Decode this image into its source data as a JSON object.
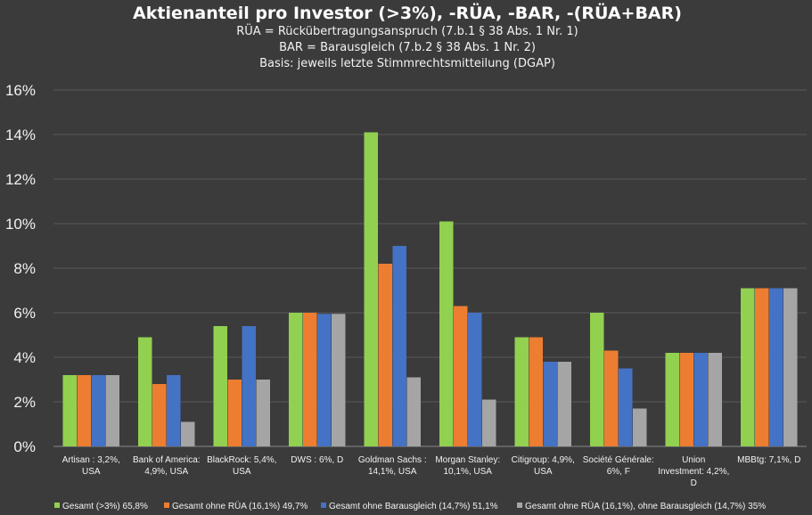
{
  "chart_data": {
    "type": "bar",
    "title": "Aktienanteil pro Investor (>3%), -RÜA, -BAR, -(RÜA+BAR)",
    "subtitle_lines": [
      "RÜA = Rückübertragungsanspruch (7.b.1 § 38 Abs. 1 Nr. 1)",
      "BAR = Barausgleich (7.b.2 § 38 Abs. 1 Nr. 2)",
      "Basis: jeweils letzte Stimmrechtsmitteilung (DGAP)"
    ],
    "categories": [
      [
        "Artisan : 3,2%,",
        "USA"
      ],
      [
        "Bank of America:",
        "4,9%, USA"
      ],
      [
        "BlackRock: 5,4%,",
        "USA"
      ],
      [
        "DWS : 6%, D"
      ],
      [
        "Goldman Sachs :",
        "14,1%, USA"
      ],
      [
        "Morgan Stanley:",
        "10,1%, USA"
      ],
      [
        "Citigroup: 4,9%,",
        "USA"
      ],
      [
        "Société Générale:",
        "6%, F"
      ],
      [
        "Union",
        "Investment: 4,2%,",
        "D"
      ],
      [
        "MBBtg: 7,1%, D"
      ]
    ],
    "ylim": [
      0,
      16
    ],
    "yticks": [
      0,
      2,
      4,
      6,
      8,
      10,
      12,
      14,
      16
    ],
    "ytick_labels": [
      "0%",
      "2%",
      "4%",
      "6%",
      "8%",
      "10%",
      "12%",
      "14%",
      "16%"
    ],
    "grid": true,
    "legend_position": "bottom",
    "series": [
      {
        "name": "Gesamt (>3%) 65,8%",
        "color": "#92d050",
        "values": [
          3.2,
          4.9,
          5.4,
          6.0,
          14.1,
          10.1,
          4.9,
          6.0,
          4.2,
          7.1
        ]
      },
      {
        "name": "Gesamt ohne RÜA (16,1%) 49,7%",
        "color": "#ed7d31",
        "values": [
          3.2,
          2.8,
          3.0,
          6.0,
          8.2,
          6.3,
          4.9,
          4.3,
          4.2,
          7.1
        ]
      },
      {
        "name": "Gesamt ohne Barausgleich (14,7%) 51,1%",
        "color": "#4472c4",
        "values": [
          3.2,
          3.2,
          5.4,
          5.95,
          9.0,
          6.0,
          3.8,
          3.5,
          4.2,
          7.1
        ]
      },
      {
        "name": "Gesamt ohne RÜA (16,1%), ohne Barausgleich (14,7%) 35%",
        "color": "#a5a5a5",
        "values": [
          3.2,
          1.1,
          3.0,
          5.95,
          3.1,
          2.1,
          3.8,
          1.7,
          4.2,
          7.1
        ]
      }
    ]
  }
}
